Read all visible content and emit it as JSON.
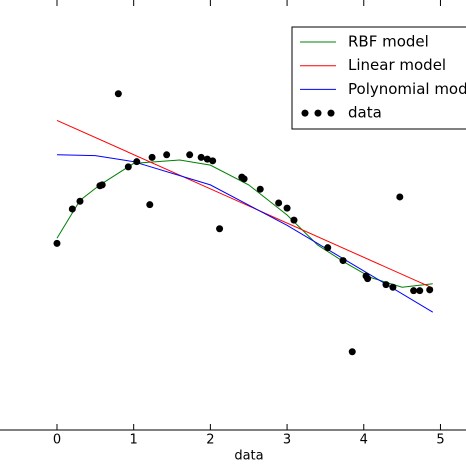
{
  "chart_data": {
    "type": "scatter-lines",
    "x_label": "data",
    "xlim": [
      -0.743,
      5.333
    ],
    "ylim": [
      -2.5,
      2.5
    ],
    "xticks": [
      0,
      1,
      2,
      3,
      4,
      5
    ],
    "legend": "upper right",
    "series": [
      {
        "name": "RBF model",
        "kind": "line",
        "color": "#008000",
        "x": [
          0,
          0.3,
          0.56,
          1.0,
          1.6,
          2.0,
          2.5,
          3.0,
          3.4,
          3.75,
          4.1,
          4.5,
          4.9
        ],
        "values": [
          -0.27,
          0.17,
          0.35,
          0.6,
          0.64,
          0.58,
          0.35,
          0,
          -0.35,
          -0.55,
          -0.73,
          -0.84,
          -0.8
        ]
      },
      {
        "name": "Linear model",
        "kind": "line",
        "color": "#ff0000",
        "x": [
          0,
          4.9
        ],
        "values": [
          1.1,
          -0.85
        ]
      },
      {
        "name": "Polynomial model",
        "kind": "line",
        "color": "#0000ff",
        "x": [
          0,
          0.5,
          1.0,
          2.0,
          3.0,
          4.0,
          4.9
        ],
        "values": [
          0.7,
          0.69,
          0.62,
          0.35,
          -0.12,
          -0.65,
          -1.13
        ]
      },
      {
        "name": "data",
        "kind": "scatter",
        "color": "#000000",
        "x": [
          0,
          0.2,
          0.3,
          0.56,
          0.59,
          0.8,
          0.93,
          1.04,
          1.21,
          1.24,
          1.43,
          1.73,
          1.88,
          1.96,
          2.03,
          2.12,
          2.41,
          2.44,
          2.65,
          2.89,
          3.0,
          3.09,
          3.53,
          3.73,
          3.85,
          4.03,
          4.05,
          4.29,
          4.38,
          4.47,
          4.65,
          4.73,
          4.86
        ],
        "values": [
          -0.33,
          0.07,
          0.16,
          0.34,
          0.35,
          1.41,
          0.56,
          0.62,
          0.12,
          0.67,
          0.7,
          0.7,
          0.67,
          0.65,
          0.63,
          -0.16,
          0.44,
          0.42,
          0.3,
          0.14,
          0.08,
          -0.06,
          -0.38,
          -0.53,
          -1.59,
          -0.71,
          -0.74,
          -0.81,
          -0.84,
          0.21,
          -0.88,
          -0.88,
          -0.87
        ]
      }
    ]
  }
}
